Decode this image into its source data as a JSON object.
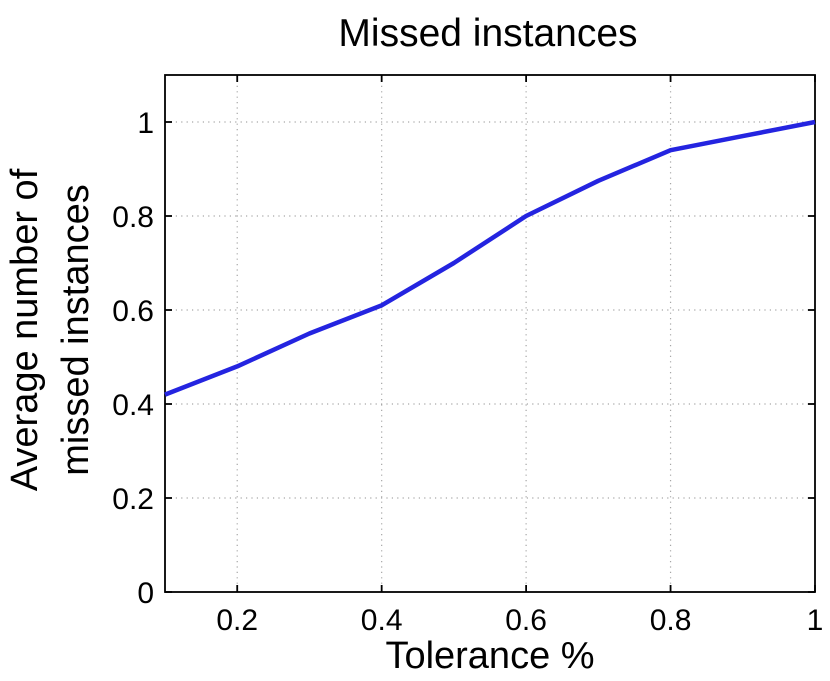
{
  "chart_data": {
    "type": "line",
    "title": "Missed instances",
    "xlabel": "Tolerance %",
    "ylabel_lines": [
      "Average number of",
      "missed instances"
    ],
    "x": [
      0.1,
      0.2,
      0.3,
      0.4,
      0.5,
      0.6,
      0.7,
      0.8,
      0.9,
      1.0
    ],
    "series": [
      {
        "name": "missed-instances",
        "values": [
          0.42,
          0.48,
          0.55,
          0.61,
          0.7,
          0.8,
          0.875,
          0.94,
          0.97,
          1.0
        ]
      }
    ],
    "xlim": [
      0.1,
      1.0
    ],
    "ylim": [
      0,
      1.1
    ],
    "xticks": [
      0.2,
      0.4,
      0.6,
      0.8,
      1.0
    ],
    "xtick_labels": [
      "0.2",
      "0.4",
      "0.6",
      "0.8",
      "1"
    ],
    "yticks": [
      0,
      0.2,
      0.4,
      0.6,
      0.8,
      1.0
    ],
    "ytick_labels": [
      "0",
      "0.2",
      "0.4",
      "0.6",
      "0.8",
      "1"
    ],
    "grid": "dotted",
    "legend": "none",
    "colors": {
      "line": "#2424e0",
      "grid": "#a6a6a6",
      "axis": "#000000",
      "text": "#000000",
      "background": "#ffffff"
    }
  }
}
